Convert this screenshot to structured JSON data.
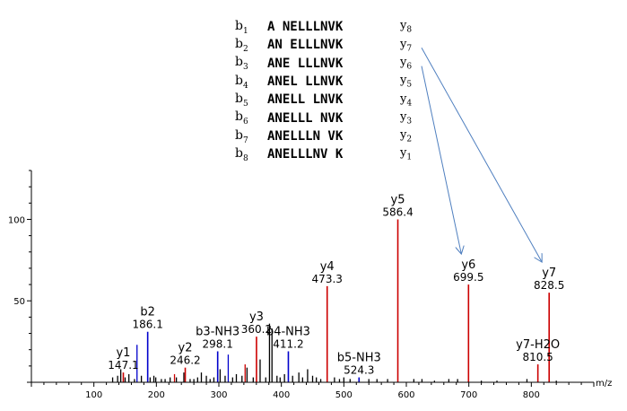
{
  "fragment_table": [
    {
      "b": "b",
      "b_sub": "1",
      "seq": "A NELLLNVK",
      "y": "y",
      "y_sub": "8"
    },
    {
      "b": "b",
      "b_sub": "2",
      "seq": "AN ELLLNVK",
      "y": "y",
      "y_sub": "7"
    },
    {
      "b": "b",
      "b_sub": "3",
      "seq": "ANE LLLNVK",
      "y": "y",
      "y_sub": "6"
    },
    {
      "b": "b",
      "b_sub": "4",
      "seq": "ANEL LLNVK",
      "y": "y",
      "y_sub": "5"
    },
    {
      "b": "b",
      "b_sub": "5",
      "seq": "ANELL LNVK",
      "y": "y",
      "y_sub": "4"
    },
    {
      "b": "b",
      "b_sub": "6",
      "seq": "ANELLL NVK",
      "y": "y",
      "y_sub": "3"
    },
    {
      "b": "b",
      "b_sub": "7",
      "seq": "ANELLLN VK",
      "y": "y",
      "y_sub": "2"
    },
    {
      "b": "b",
      "b_sub": "8",
      "seq": "ANELLLNV K",
      "y": "y",
      "y_sub": "1"
    }
  ],
  "chart_data": {
    "type": "bar",
    "xlabel": "m/z",
    "ylabel": "",
    "xlim": [
      0,
      900
    ],
    "ylim": [
      0,
      130
    ],
    "xticks": [
      100,
      200,
      300,
      400,
      500,
      600,
      700,
      800
    ],
    "yticks": [
      50,
      100
    ],
    "colors": {
      "y_ion": "#cc0000",
      "b_ion": "#0000cc",
      "other": "#000000",
      "axis": "#000000",
      "arrow": "#4f7fbf"
    },
    "labeled_peaks": [
      {
        "ion": "y1",
        "mz": 147.1,
        "intensity": 6,
        "series": "y"
      },
      {
        "ion": "b2",
        "mz": 186.1,
        "intensity": 31,
        "series": "b"
      },
      {
        "ion": "y2",
        "mz": 246.2,
        "intensity": 9,
        "series": "y"
      },
      {
        "ion": "b3-NH3",
        "mz": 298.1,
        "intensity": 19,
        "series": "b"
      },
      {
        "ion": "y3",
        "mz": 360.2,
        "intensity": 28,
        "series": "y"
      },
      {
        "ion": "b4-NH3",
        "mz": 411.2,
        "intensity": 19,
        "series": "b"
      },
      {
        "ion": "y4",
        "mz": 473.3,
        "intensity": 59,
        "series": "y"
      },
      {
        "ion": "b5-NH3",
        "mz": 524.3,
        "intensity": 3,
        "series": "b"
      },
      {
        "ion": "y5",
        "mz": 586.4,
        "intensity": 100,
        "series": "y"
      },
      {
        "ion": "y6",
        "mz": 699.5,
        "intensity": 60,
        "series": "y"
      },
      {
        "ion": "y7-H2O",
        "mz": 810.5,
        "intensity": 11,
        "series": "y"
      },
      {
        "ion": "y7",
        "mz": 828.5,
        "intensity": 55,
        "series": "y"
      }
    ],
    "other_peaks": [
      {
        "mz": 130,
        "intensity": 3,
        "series": "other"
      },
      {
        "mz": 138,
        "intensity": 4,
        "series": "other"
      },
      {
        "mz": 143,
        "intensity": 8,
        "series": "other"
      },
      {
        "mz": 150,
        "intensity": 3,
        "series": "other"
      },
      {
        "mz": 156,
        "intensity": 5,
        "series": "other"
      },
      {
        "mz": 165,
        "intensity": 2,
        "series": "other"
      },
      {
        "mz": 169,
        "intensity": 23,
        "series": "b"
      },
      {
        "mz": 176,
        "intensity": 4,
        "series": "other"
      },
      {
        "mz": 190,
        "intensity": 3,
        "series": "other"
      },
      {
        "mz": 196,
        "intensity": 4,
        "series": "other"
      },
      {
        "mz": 199,
        "intensity": 3,
        "series": "other"
      },
      {
        "mz": 208,
        "intensity": 2,
        "series": "other"
      },
      {
        "mz": 214,
        "intensity": 2,
        "series": "other"
      },
      {
        "mz": 222,
        "intensity": 3,
        "series": "other"
      },
      {
        "mz": 229,
        "intensity": 5,
        "series": "y"
      },
      {
        "mz": 232,
        "intensity": 3,
        "series": "other"
      },
      {
        "mz": 244,
        "intensity": 6,
        "series": "other"
      },
      {
        "mz": 254,
        "intensity": 2,
        "series": "other"
      },
      {
        "mz": 260,
        "intensity": 2,
        "series": "other"
      },
      {
        "mz": 266,
        "intensity": 3,
        "series": "other"
      },
      {
        "mz": 272,
        "intensity": 6,
        "series": "other"
      },
      {
        "mz": 280,
        "intensity": 4,
        "series": "other"
      },
      {
        "mz": 286,
        "intensity": 2,
        "series": "other"
      },
      {
        "mz": 292,
        "intensity": 3,
        "series": "other"
      },
      {
        "mz": 302,
        "intensity": 8,
        "series": "other"
      },
      {
        "mz": 310,
        "intensity": 4,
        "series": "other"
      },
      {
        "mz": 315,
        "intensity": 17,
        "series": "b"
      },
      {
        "mz": 322,
        "intensity": 3,
        "series": "other"
      },
      {
        "mz": 328,
        "intensity": 5,
        "series": "other"
      },
      {
        "mz": 337,
        "intensity": 4,
        "series": "other"
      },
      {
        "mz": 342,
        "intensity": 11,
        "series": "y"
      },
      {
        "mz": 345,
        "intensity": 9,
        "series": "other"
      },
      {
        "mz": 355,
        "intensity": 3,
        "series": "other"
      },
      {
        "mz": 366,
        "intensity": 14,
        "series": "other"
      },
      {
        "mz": 375,
        "intensity": 3,
        "series": "other"
      },
      {
        "mz": 381,
        "intensity": 36,
        "series": "other"
      },
      {
        "mz": 385,
        "intensity": 33,
        "series": "other"
      },
      {
        "mz": 393,
        "intensity": 4,
        "series": "other"
      },
      {
        "mz": 398,
        "intensity": 3,
        "series": "other"
      },
      {
        "mz": 405,
        "intensity": 5,
        "series": "other"
      },
      {
        "mz": 418,
        "intensity": 4,
        "series": "other"
      },
      {
        "mz": 428,
        "intensity": 6,
        "series": "other"
      },
      {
        "mz": 434,
        "intensity": 3,
        "series": "other"
      },
      {
        "mz": 442,
        "intensity": 8,
        "series": "other"
      },
      {
        "mz": 450,
        "intensity": 4,
        "series": "other"
      },
      {
        "mz": 456,
        "intensity": 3,
        "series": "other"
      },
      {
        "mz": 463,
        "intensity": 2,
        "series": "other"
      },
      {
        "mz": 485,
        "intensity": 3,
        "series": "other"
      },
      {
        "mz": 493,
        "intensity": 2,
        "series": "other"
      },
      {
        "mz": 500,
        "intensity": 3,
        "series": "other"
      },
      {
        "mz": 510,
        "intensity": 2,
        "series": "other"
      },
      {
        "mz": 540,
        "intensity": 2,
        "series": "other"
      },
      {
        "mz": 553,
        "intensity": 2,
        "series": "other"
      },
      {
        "mz": 570,
        "intensity": 2,
        "series": "other"
      },
      {
        "mz": 612,
        "intensity": 2,
        "series": "other"
      },
      {
        "mz": 625,
        "intensity": 2,
        "series": "other"
      },
      {
        "mz": 645,
        "intensity": 1,
        "series": "other"
      },
      {
        "mz": 668,
        "intensity": 2,
        "series": "other"
      },
      {
        "mz": 682,
        "intensity": 2,
        "series": "other"
      },
      {
        "mz": 720,
        "intensity": 1,
        "series": "other"
      },
      {
        "mz": 745,
        "intensity": 1,
        "series": "other"
      },
      {
        "mz": 793,
        "intensity": 2,
        "series": "other"
      },
      {
        "mz": 840,
        "intensity": 1,
        "series": "other"
      }
    ]
  }
}
